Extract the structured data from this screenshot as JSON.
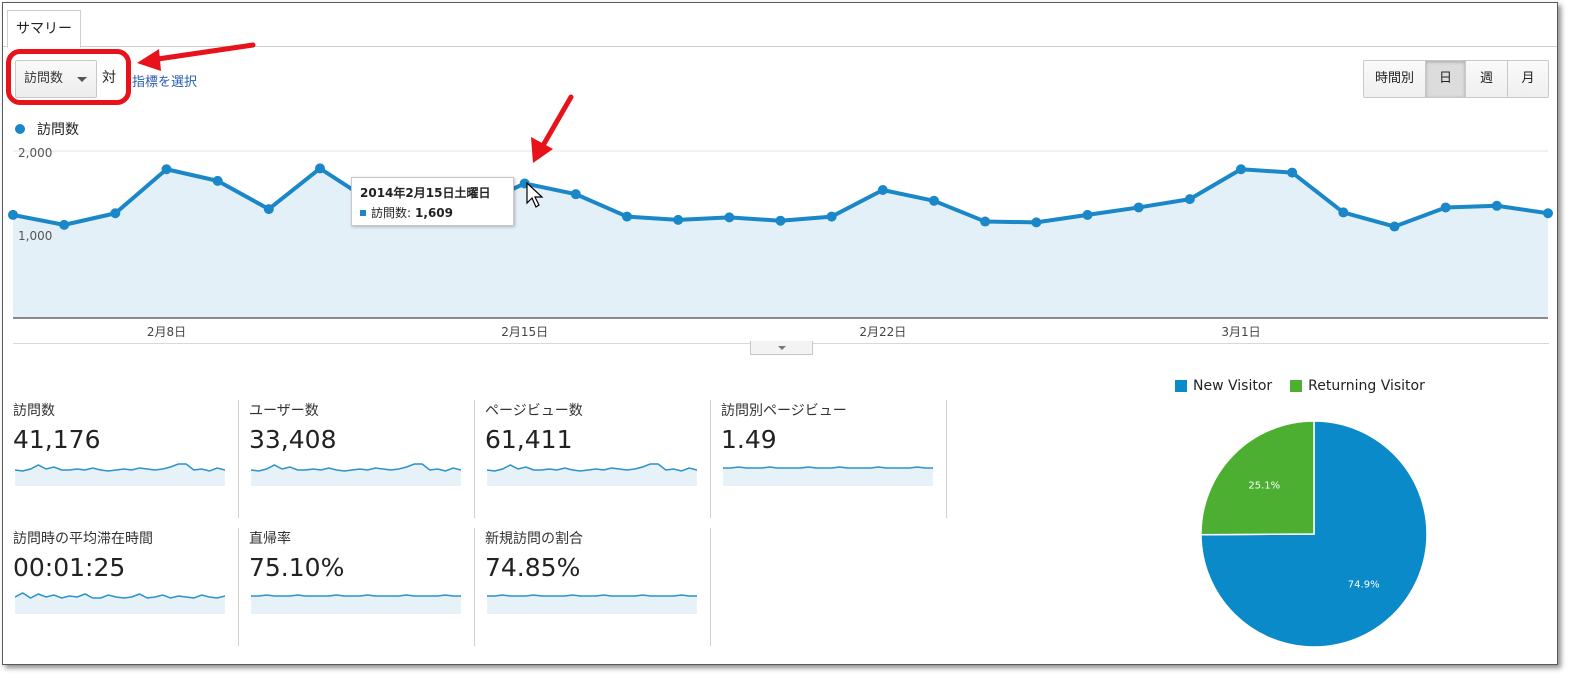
{
  "tabs": {
    "summary": "サマリー"
  },
  "toolbar": {
    "metric_selected": "訪問数",
    "vs_label": "対",
    "select_metric_link": "指標を選択",
    "periods": [
      "時間別",
      "日",
      "週",
      "月"
    ],
    "active_period": "日"
  },
  "chart": {
    "legend_label": "訪問数",
    "accent_color": "#1a87c8",
    "fill_color": "#e4f0f8",
    "tooltip": {
      "title": "2014年2月15日土曜日",
      "metric": "訪問数:",
      "value": "1,609"
    }
  },
  "chart_data": {
    "type": "area",
    "title": "",
    "xlabel": "",
    "ylabel": "",
    "ylim": [
      0,
      2000
    ],
    "y_ticks": [
      "2,000",
      "1,000"
    ],
    "grid": true,
    "x_tick_labels": [
      "2月8日",
      "2月15日",
      "2月22日",
      "3月1日"
    ],
    "series": [
      {
        "name": "訪問数",
        "values": [
          1230,
          1110,
          1250,
          1780,
          1640,
          1300,
          1790,
          1390,
          1360,
          1320,
          1609,
          1480,
          1210,
          1170,
          1200,
          1160,
          1210,
          1530,
          1400,
          1150,
          1140,
          1230,
          1320,
          1420,
          1780,
          1740,
          1260,
          1090,
          1320,
          1340,
          1250
        ]
      }
    ]
  },
  "stats": [
    {
      "label": "訪問数",
      "value": "41,176"
    },
    {
      "label": "ユーザー数",
      "value": "33,408"
    },
    {
      "label": "ページビュー数",
      "value": "61,411"
    },
    {
      "label": "訪問別ページビュー",
      "value": "1.49"
    },
    {
      "label": "訪問時の平均滞在時間",
      "value": "00:01:25"
    },
    {
      "label": "直帰率",
      "value": "75.10%"
    },
    {
      "label": "新規訪問の割合",
      "value": "74.85%"
    }
  ],
  "pie": {
    "legend": [
      {
        "name": "New Visitor",
        "color": "#0a8ac8"
      },
      {
        "name": "Returning Visitor",
        "color": "#4caf32"
      }
    ],
    "slices": [
      {
        "name": "New Visitor",
        "value": 74.9,
        "label": "74.9%"
      },
      {
        "name": "Returning Visitor",
        "value": 25.1,
        "label": "25.1%"
      }
    ]
  }
}
